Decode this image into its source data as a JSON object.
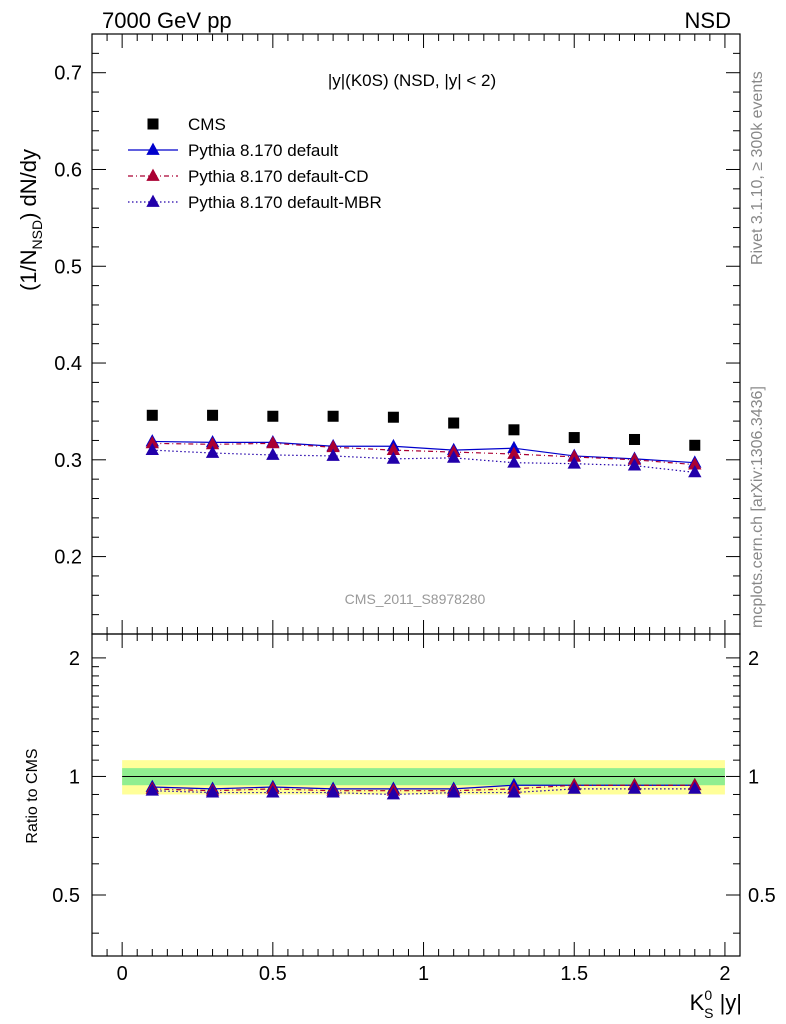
{
  "header": {
    "left_label": "7000 GeV pp",
    "right_label": "NSD"
  },
  "side_labels": {
    "rivet": "Rivet 3.1.10, ≥ 300k events",
    "source": "mcplots.cern.ch [arXiv:1306.3436]"
  },
  "colors": {
    "cms": "#000000",
    "default": "#0000cc",
    "default_cd": "#aa0033",
    "default_mbr": "#2200aa",
    "band_inner": "#90ee90",
    "band_outer": "#ffff99"
  },
  "chart_data": [
    {
      "type": "scatter",
      "panel": "main",
      "title": "|y|(K0S) (NSD, |y| < 2)",
      "watermark": "CMS_2011_S8978280",
      "ylabel_main": "(1/N",
      "ylabel_sub": "NSD",
      "ylabel_tail": ") dN/dy",
      "xlim": [
        -0.1,
        2.05
      ],
      "ylim": [
        0.12,
        0.74
      ],
      "yticks": [
        0.2,
        0.3,
        0.4,
        0.5,
        0.6,
        0.7
      ],
      "ytick_labels": [
        "0.2",
        "0.3",
        "0.4",
        "0.5",
        "0.6",
        "0.7"
      ],
      "legend_position": "top-left",
      "x": [
        0.1,
        0.3,
        0.5,
        0.7,
        0.9,
        1.1,
        1.3,
        1.5,
        1.7,
        1.9
      ],
      "series": [
        {
          "name": "CMS",
          "style": "square",
          "values": [
            0.346,
            0.346,
            0.345,
            0.345,
            0.344,
            0.338,
            0.331,
            0.323,
            0.321,
            0.315
          ]
        },
        {
          "name": "Pythia 8.170 default",
          "style": "solid",
          "values": [
            0.319,
            0.318,
            0.318,
            0.314,
            0.314,
            0.31,
            0.312,
            0.304,
            0.301,
            0.297
          ]
        },
        {
          "name": "Pythia 8.170 default-CD",
          "style": "dashdot",
          "values": [
            0.317,
            0.316,
            0.317,
            0.313,
            0.31,
            0.308,
            0.306,
            0.303,
            0.3,
            0.295
          ]
        },
        {
          "name": "Pythia 8.170 default-MBR",
          "style": "dotted",
          "values": [
            0.31,
            0.307,
            0.305,
            0.304,
            0.301,
            0.302,
            0.297,
            0.296,
            0.294,
            0.287
          ]
        }
      ]
    },
    {
      "type": "scatter",
      "panel": "ratio",
      "ylabel": "Ratio to CMS",
      "xlabel_main": "K",
      "xlabel_sup": "0",
      "xlabel_sub": "S",
      "xlabel_tail": " |y|",
      "xlim": [
        -0.1,
        2.05
      ],
      "ylim": [
        0.35,
        2.3
      ],
      "xticks": [
        0,
        0.5,
        1,
        1.5,
        2
      ],
      "xtick_labels": [
        "0",
        "0.5",
        "1",
        "1.5",
        "2"
      ],
      "yticks": [
        0.5,
        1,
        2
      ],
      "ytick_labels": [
        "0.5",
        "1",
        "2"
      ],
      "band_inner": [
        0.95,
        1.05
      ],
      "band_outer": [
        0.9,
        1.1
      ],
      "x": [
        0.1,
        0.3,
        0.5,
        0.7,
        0.9,
        1.1,
        1.3,
        1.5,
        1.7,
        1.9
      ],
      "series": [
        {
          "name": "Pythia 8.170 default",
          "style": "solid",
          "values": [
            0.94,
            0.93,
            0.94,
            0.93,
            0.93,
            0.93,
            0.95,
            0.95,
            0.95,
            0.95
          ]
        },
        {
          "name": "Pythia 8.170 default-CD",
          "style": "dashdot",
          "values": [
            0.93,
            0.92,
            0.93,
            0.92,
            0.92,
            0.92,
            0.93,
            0.95,
            0.95,
            0.95
          ]
        },
        {
          "name": "Pythia 8.170 default-MBR",
          "style": "dotted",
          "values": [
            0.92,
            0.91,
            0.91,
            0.91,
            0.9,
            0.91,
            0.91,
            0.93,
            0.93,
            0.93
          ]
        }
      ]
    }
  ]
}
